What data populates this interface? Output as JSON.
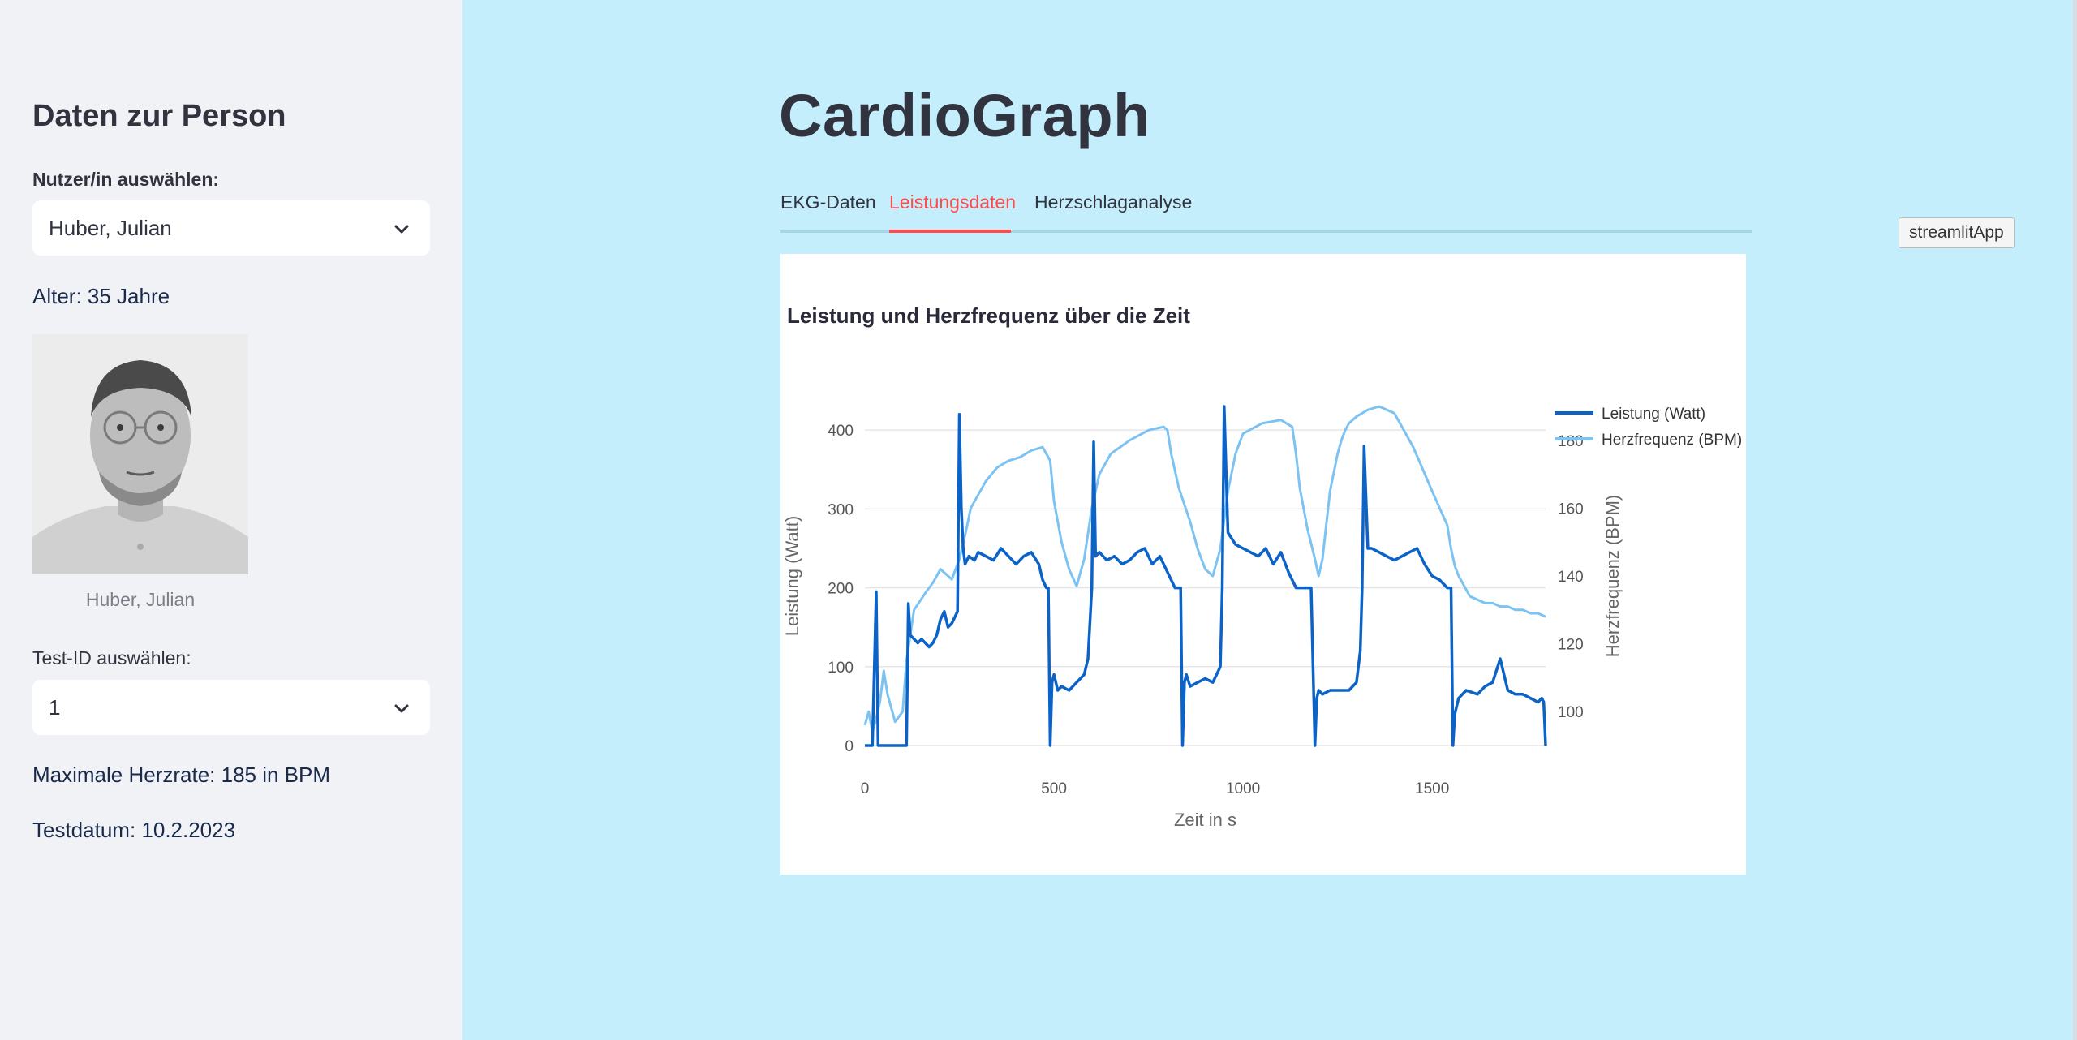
{
  "sidebar": {
    "title": "Daten zur Person",
    "user_label": "Nutzer/in auswählen:",
    "user_selected": "Huber, Julian",
    "age_text": "Alter: 35 Jahre",
    "photo_caption": "Huber, Julian",
    "test_label": "Test-ID auswählen:",
    "test_selected": "1",
    "max_hr_text": "Maximale Herzrate: 185 in BPM",
    "test_date_text": "Testdatum: 10.2.2023"
  },
  "main": {
    "title": "CardioGraph",
    "tabs": [
      {
        "label": "EKG-Daten",
        "active": false
      },
      {
        "label": "Leistungsdaten",
        "active": true
      },
      {
        "label": "Herzschlaganalyse",
        "active": false
      }
    ]
  },
  "tooltip": "streamlitApp",
  "colors": {
    "accent": "#ff4b4b",
    "main_bg": "#c4eefb",
    "sidebar_bg": "#f0f2f6",
    "power_line": "#0b63c7",
    "hr_line": "#7cc3f3"
  },
  "chart_data": {
    "type": "line",
    "title": "Leistung und Herzfrequenz über die Zeit",
    "xlabel": "Zeit in s",
    "ylabel": "Leistung (Watt)",
    "y2label": "Herzfrequenz (BPM)",
    "xlim": [
      0,
      1800
    ],
    "ylim": [
      0,
      430
    ],
    "y2lim": [
      90,
      190
    ],
    "x_ticks": [
      0,
      500,
      1000,
      1500
    ],
    "y_ticks": [
      0,
      100,
      200,
      300,
      400
    ],
    "y2_ticks": [
      100,
      120,
      140,
      160,
      180
    ],
    "legend_position": "top-right",
    "series": [
      {
        "name": "Leistung (Watt)",
        "axis": "left",
        "x": [
          0,
          20,
          30,
          35,
          40,
          45,
          50,
          105,
          110,
          115,
          120,
          140,
          150,
          170,
          180,
          190,
          200,
          210,
          220,
          230,
          240,
          245,
          250,
          255,
          260,
          265,
          275,
          290,
          300,
          320,
          340,
          360,
          380,
          400,
          420,
          440,
          460,
          470,
          480,
          485,
          490,
          495,
          500,
          510,
          520,
          540,
          560,
          580,
          590,
          600,
          605,
          610,
          620,
          640,
          660,
          680,
          700,
          720,
          740,
          760,
          780,
          800,
          820,
          835,
          840,
          845,
          850,
          860,
          880,
          900,
          920,
          930,
          940,
          945,
          950,
          960,
          980,
          1000,
          1020,
          1040,
          1060,
          1080,
          1100,
          1120,
          1140,
          1180,
          1190,
          1195,
          1200,
          1210,
          1230,
          1260,
          1280,
          1300,
          1310,
          1315,
          1320,
          1330,
          1340,
          1360,
          1380,
          1400,
          1420,
          1440,
          1460,
          1480,
          1500,
          1520,
          1540,
          1550,
          1555,
          1560,
          1570,
          1590,
          1620,
          1640,
          1660,
          1680,
          1700,
          1720,
          1740,
          1760,
          1780,
          1790,
          1795,
          1800
        ],
        "values": [
          0,
          0,
          195,
          0,
          0,
          0,
          0,
          0,
          0,
          180,
          140,
          130,
          135,
          125,
          130,
          140,
          160,
          170,
          150,
          155,
          165,
          170,
          420,
          300,
          250,
          230,
          240,
          235,
          245,
          240,
          235,
          250,
          240,
          230,
          240,
          245,
          230,
          210,
          200,
          200,
          0,
          80,
          90,
          70,
          75,
          70,
          80,
          90,
          110,
          200,
          385,
          240,
          245,
          235,
          240,
          230,
          235,
          245,
          250,
          230,
          240,
          220,
          200,
          200,
          0,
          80,
          90,
          75,
          80,
          85,
          80,
          90,
          100,
          200,
          430,
          270,
          255,
          250,
          245,
          240,
          250,
          230,
          245,
          220,
          200,
          200,
          0,
          60,
          70,
          65,
          70,
          70,
          70,
          80,
          120,
          200,
          380,
          250,
          250,
          245,
          240,
          235,
          240,
          245,
          250,
          230,
          215,
          210,
          200,
          200,
          0,
          40,
          60,
          70,
          65,
          75,
          80,
          110,
          70,
          65,
          65,
          60,
          55,
          60,
          55,
          0
        ]
      },
      {
        "name": "Herzfrequenz (BPM)",
        "axis": "right",
        "x": [
          0,
          10,
          20,
          30,
          40,
          50,
          60,
          80,
          100,
          110,
          130,
          160,
          180,
          200,
          230,
          250,
          265,
          280,
          300,
          320,
          350,
          380,
          410,
          440,
          470,
          480,
          490,
          500,
          520,
          540,
          560,
          580,
          600,
          620,
          650,
          700,
          750,
          790,
          800,
          810,
          830,
          860,
          880,
          900,
          920,
          940,
          960,
          980,
          1000,
          1050,
          1100,
          1130,
          1140,
          1150,
          1160,
          1170,
          1190,
          1200,
          1210,
          1230,
          1250,
          1260,
          1270,
          1280,
          1300,
          1330,
          1360,
          1400,
          1450,
          1500,
          1540,
          1550,
          1560,
          1570,
          1580,
          1590,
          1600,
          1620,
          1640,
          1660,
          1680,
          1700,
          1720,
          1740,
          1760,
          1780,
          1800
        ],
        "values": [
          96,
          100,
          94,
          98,
          103,
          112,
          105,
          97,
          100,
          115,
          130,
          135,
          138,
          142,
          139,
          145,
          152,
          160,
          164,
          168,
          172,
          174,
          175,
          177,
          178,
          176,
          174,
          162,
          150,
          142,
          137,
          145,
          160,
          170,
          176,
          180,
          183,
          184,
          183,
          176,
          166,
          156,
          148,
          142,
          140,
          148,
          165,
          176,
          182,
          185,
          186,
          184,
          176,
          166,
          160,
          154,
          145,
          140,
          145,
          165,
          176,
          180,
          183,
          185,
          187,
          189,
          190,
          188,
          178,
          165,
          155,
          148,
          143,
          140,
          138,
          136,
          134,
          133,
          132,
          132,
          131,
          131,
          130,
          130,
          129,
          129,
          128
        ]
      }
    ]
  }
}
